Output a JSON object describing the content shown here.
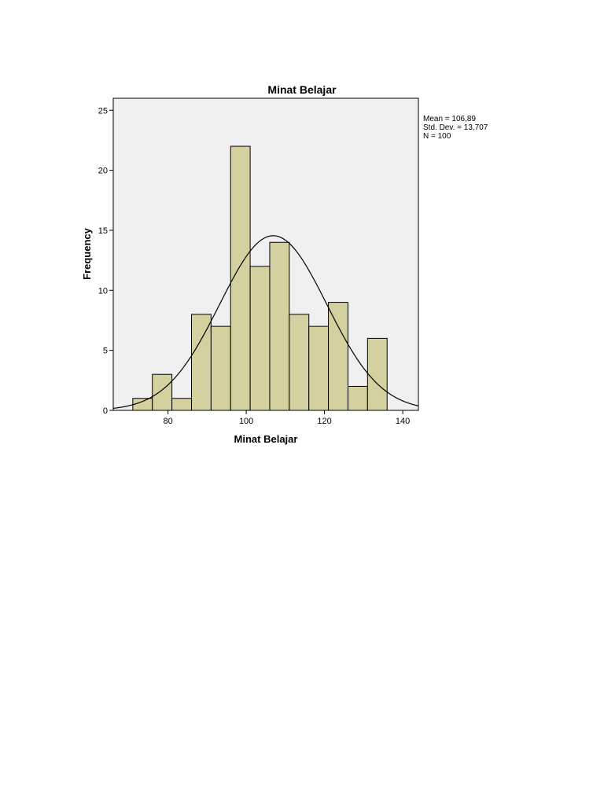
{
  "chart_data": {
    "type": "bar",
    "subtype": "histogram",
    "title": "Minat Belajar",
    "xlabel": "Minat Belajar",
    "ylabel": "Frequency",
    "bin_width": 5,
    "bins": [
      {
        "start": 71,
        "end": 76,
        "value": 1
      },
      {
        "start": 76,
        "end": 81,
        "value": 3
      },
      {
        "start": 81,
        "end": 86,
        "value": 1
      },
      {
        "start": 86,
        "end": 91,
        "value": 8
      },
      {
        "start": 91,
        "end": 96,
        "value": 7
      },
      {
        "start": 96,
        "end": 101,
        "value": 22
      },
      {
        "start": 101,
        "end": 106,
        "value": 12
      },
      {
        "start": 106,
        "end": 111,
        "value": 14
      },
      {
        "start": 111,
        "end": 116,
        "value": 8
      },
      {
        "start": 116,
        "end": 121,
        "value": 7
      },
      {
        "start": 121,
        "end": 126,
        "value": 9
      },
      {
        "start": 126,
        "end": 131,
        "value": 2
      },
      {
        "start": 131,
        "end": 136,
        "value": 6
      }
    ],
    "xlim": [
      66,
      144
    ],
    "ylim": [
      0,
      26
    ],
    "x_ticks": [
      "80",
      "100",
      "120",
      "140"
    ],
    "x_tick_values": [
      80,
      100,
      120,
      140
    ],
    "y_ticks": [
      "0",
      "5",
      "10",
      "15",
      "20",
      "25"
    ],
    "y_tick_values": [
      0,
      5,
      10,
      15,
      20,
      25
    ],
    "normal_curve": {
      "mean": 106.89,
      "sd": 13.707,
      "n": 100
    },
    "stats": {
      "mean": "Mean = 106,89",
      "sd": "Std. Dev. = 13,707",
      "n": "N = 100"
    },
    "colors": {
      "bar_fill": "#d4d1a0",
      "bar_stroke": "#000000",
      "plot_background": "#f0f0f0",
      "curve": "#000000"
    },
    "grid": false
  }
}
